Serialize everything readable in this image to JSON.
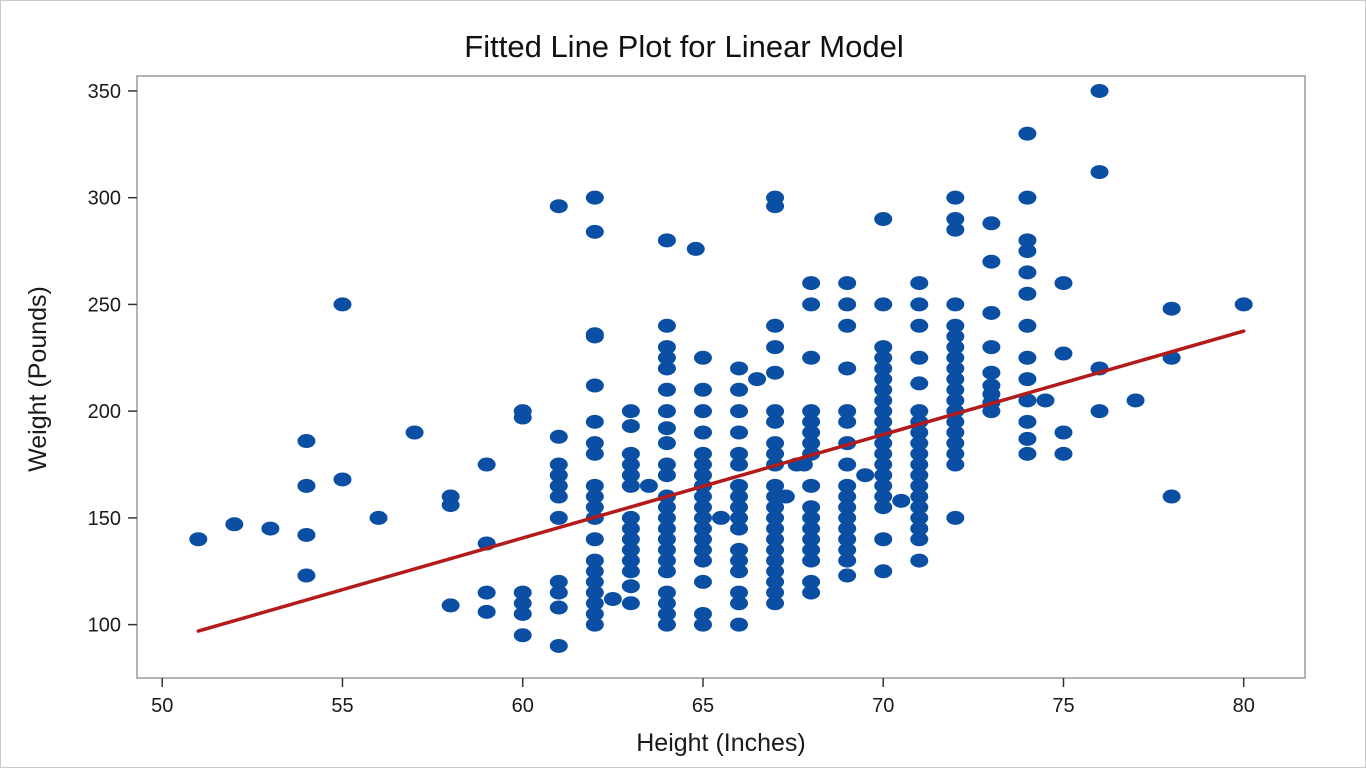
{
  "chart_data": {
    "type": "scatter",
    "title": "Fitted Line Plot for Linear Model",
    "xlabel": "Height (Inches)",
    "ylabel": "Weight (Pounds)",
    "xlim": [
      49.3,
      81.7
    ],
    "ylim": [
      75,
      357
    ],
    "x_ticks": [
      50,
      55,
      60,
      65,
      70,
      75,
      80
    ],
    "y_ticks": [
      100,
      150,
      200,
      250,
      300,
      350
    ],
    "x_tick_labels": [
      "50",
      "55",
      "60",
      "65",
      "70",
      "75",
      "80"
    ],
    "y_tick_labels": [
      "100",
      "150",
      "200",
      "250",
      "300",
      "350"
    ],
    "grid": false,
    "legend": "none",
    "colors": {
      "points": "#0a4fa3",
      "fit_line": "#b31b1b",
      "frame": "#9a9a9a",
      "background": "#ffffff"
    },
    "series": [
      {
        "type": "scatter",
        "points": [
          [
            51,
            140
          ],
          [
            52,
            147
          ],
          [
            53,
            145
          ],
          [
            54,
            186
          ],
          [
            54,
            165
          ],
          [
            54,
            142
          ],
          [
            54,
            123
          ],
          [
            55,
            250
          ],
          [
            55,
            168
          ],
          [
            56,
            150
          ],
          [
            57,
            190
          ],
          [
            58,
            160
          ],
          [
            58,
            156
          ],
          [
            58,
            109
          ],
          [
            59,
            175
          ],
          [
            59,
            138
          ],
          [
            59,
            115
          ],
          [
            59,
            106
          ],
          [
            60,
            200
          ],
          [
            60,
            197
          ],
          [
            60,
            115
          ],
          [
            60,
            110
          ],
          [
            60,
            105
          ],
          [
            60,
            95
          ],
          [
            61,
            296
          ],
          [
            61,
            188
          ],
          [
            61,
            175
          ],
          [
            61,
            170
          ],
          [
            61,
            165
          ],
          [
            61,
            160
          ],
          [
            61,
            150
          ],
          [
            61,
            120
          ],
          [
            61,
            115
          ],
          [
            61,
            108
          ],
          [
            61,
            90
          ],
          [
            62,
            300
          ],
          [
            62,
            284
          ],
          [
            62,
            236
          ],
          [
            62,
            235
          ],
          [
            62,
            212
          ],
          [
            62,
            195
          ],
          [
            62,
            185
          ],
          [
            62,
            180
          ],
          [
            62,
            165
          ],
          [
            62,
            160
          ],
          [
            62,
            155
          ],
          [
            62,
            150
          ],
          [
            62,
            140
          ],
          [
            62,
            130
          ],
          [
            62,
            125
          ],
          [
            62,
            120
          ],
          [
            62,
            115
          ],
          [
            62,
            110
          ],
          [
            62,
            105
          ],
          [
            62,
            100
          ],
          [
            62.5,
            112
          ],
          [
            63,
            200
          ],
          [
            63,
            193
          ],
          [
            63,
            180
          ],
          [
            63,
            175
          ],
          [
            63,
            170
          ],
          [
            63,
            165
          ],
          [
            63,
            150
          ],
          [
            63,
            145
          ],
          [
            63,
            140
          ],
          [
            63,
            135
          ],
          [
            63,
            130
          ],
          [
            63,
            125
          ],
          [
            63,
            118
          ],
          [
            63,
            110
          ],
          [
            63.5,
            165
          ],
          [
            64,
            280
          ],
          [
            64,
            240
          ],
          [
            64,
            230
          ],
          [
            64,
            225
          ],
          [
            64,
            220
          ],
          [
            64,
            210
          ],
          [
            64,
            200
          ],
          [
            64,
            192
          ],
          [
            64,
            185
          ],
          [
            64,
            175
          ],
          [
            64,
            170
          ],
          [
            64,
            160
          ],
          [
            64,
            155
          ],
          [
            64,
            150
          ],
          [
            64,
            145
          ],
          [
            64,
            140
          ],
          [
            64,
            135
          ],
          [
            64,
            130
          ],
          [
            64,
            125
          ],
          [
            64,
            115
          ],
          [
            64,
            110
          ],
          [
            64,
            105
          ],
          [
            64,
            100
          ],
          [
            64.8,
            276
          ],
          [
            65,
            225
          ],
          [
            65,
            210
          ],
          [
            65,
            200
          ],
          [
            65,
            190
          ],
          [
            65,
            180
          ],
          [
            65,
            175
          ],
          [
            65,
            170
          ],
          [
            65,
            165
          ],
          [
            65,
            160
          ],
          [
            65,
            155
          ],
          [
            65,
            150
          ],
          [
            65,
            145
          ],
          [
            65,
            140
          ],
          [
            65,
            135
          ],
          [
            65,
            130
          ],
          [
            65,
            120
          ],
          [
            65,
            105
          ],
          [
            65,
            100
          ],
          [
            65.5,
            150
          ],
          [
            66,
            220
          ],
          [
            66,
            210
          ],
          [
            66,
            200
          ],
          [
            66,
            190
          ],
          [
            66,
            180
          ],
          [
            66,
            175
          ],
          [
            66,
            165
          ],
          [
            66,
            160
          ],
          [
            66,
            155
          ],
          [
            66,
            150
          ],
          [
            66,
            145
          ],
          [
            66,
            135
          ],
          [
            66,
            130
          ],
          [
            66,
            125
          ],
          [
            66,
            115
          ],
          [
            66,
            110
          ],
          [
            66,
            100
          ],
          [
            66.5,
            215
          ],
          [
            67,
            300
          ],
          [
            67,
            296
          ],
          [
            67,
            240
          ],
          [
            67,
            230
          ],
          [
            67,
            218
          ],
          [
            67,
            200
          ],
          [
            67,
            195
          ],
          [
            67,
            185
          ],
          [
            67,
            180
          ],
          [
            67,
            175
          ],
          [
            67,
            165
          ],
          [
            67,
            160
          ],
          [
            67,
            155
          ],
          [
            67,
            150
          ],
          [
            67,
            145
          ],
          [
            67,
            140
          ],
          [
            67,
            135
          ],
          [
            67,
            130
          ],
          [
            67,
            125
          ],
          [
            67,
            120
          ],
          [
            67,
            115
          ],
          [
            67,
            110
          ],
          [
            67.3,
            160
          ],
          [
            67.6,
            175
          ],
          [
            67.8,
            175
          ],
          [
            68,
            260
          ],
          [
            68,
            250
          ],
          [
            68,
            225
          ],
          [
            68,
            200
          ],
          [
            68,
            195
          ],
          [
            68,
            190
          ],
          [
            68,
            185
          ],
          [
            68,
            180
          ],
          [
            68,
            165
          ],
          [
            68,
            155
          ],
          [
            68,
            150
          ],
          [
            68,
            145
          ],
          [
            68,
            140
          ],
          [
            68,
            135
          ],
          [
            68,
            130
          ],
          [
            68,
            120
          ],
          [
            68,
            115
          ],
          [
            69,
            260
          ],
          [
            69,
            250
          ],
          [
            69,
            240
          ],
          [
            69,
            220
          ],
          [
            69,
            200
          ],
          [
            69,
            195
          ],
          [
            69,
            185
          ],
          [
            69,
            175
          ],
          [
            69,
            165
          ],
          [
            69,
            160
          ],
          [
            69,
            155
          ],
          [
            69,
            150
          ],
          [
            69,
            145
          ],
          [
            69,
            140
          ],
          [
            69,
            135
          ],
          [
            69,
            130
          ],
          [
            69,
            123
          ],
          [
            69.5,
            170
          ],
          [
            70,
            290
          ],
          [
            70,
            250
          ],
          [
            70,
            230
          ],
          [
            70,
            225
          ],
          [
            70,
            220
          ],
          [
            70,
            215
          ],
          [
            70,
            210
          ],
          [
            70,
            205
          ],
          [
            70,
            200
          ],
          [
            70,
            195
          ],
          [
            70,
            190
          ],
          [
            70,
            185
          ],
          [
            70,
            180
          ],
          [
            70,
            175
          ],
          [
            70,
            170
          ],
          [
            70,
            165
          ],
          [
            70,
            160
          ],
          [
            70,
            155
          ],
          [
            70,
            140
          ],
          [
            70,
            125
          ],
          [
            70.5,
            158
          ],
          [
            71,
            260
          ],
          [
            71,
            250
          ],
          [
            71,
            240
          ],
          [
            71,
            225
          ],
          [
            71,
            213
          ],
          [
            71,
            200
          ],
          [
            71,
            195
          ],
          [
            71,
            190
          ],
          [
            71,
            185
          ],
          [
            71,
            180
          ],
          [
            71,
            175
          ],
          [
            71,
            170
          ],
          [
            71,
            165
          ],
          [
            71,
            160
          ],
          [
            71,
            155
          ],
          [
            71,
            150
          ],
          [
            71,
            145
          ],
          [
            71,
            140
          ],
          [
            71,
            130
          ],
          [
            72,
            300
          ],
          [
            72,
            290
          ],
          [
            72,
            285
          ],
          [
            72,
            250
          ],
          [
            72,
            240
          ],
          [
            72,
            235
          ],
          [
            72,
            230
          ],
          [
            72,
            225
          ],
          [
            72,
            220
          ],
          [
            72,
            215
          ],
          [
            72,
            210
          ],
          [
            72,
            205
          ],
          [
            72,
            200
          ],
          [
            72,
            195
          ],
          [
            72,
            190
          ],
          [
            72,
            185
          ],
          [
            72,
            180
          ],
          [
            72,
            175
          ],
          [
            72,
            150
          ],
          [
            73,
            288
          ],
          [
            73,
            270
          ],
          [
            73,
            246
          ],
          [
            73,
            230
          ],
          [
            73,
            218
          ],
          [
            73,
            212
          ],
          [
            73,
            208
          ],
          [
            73,
            204
          ],
          [
            73,
            200
          ],
          [
            74,
            330
          ],
          [
            74,
            300
          ],
          [
            74,
            280
          ],
          [
            74,
            275
          ],
          [
            74,
            265
          ],
          [
            74,
            255
          ],
          [
            74,
            240
          ],
          [
            74,
            225
          ],
          [
            74,
            215
          ],
          [
            74,
            205
          ],
          [
            74,
            195
          ],
          [
            74,
            187
          ],
          [
            74,
            180
          ],
          [
            74.5,
            205
          ],
          [
            75,
            260
          ],
          [
            75,
            227
          ],
          [
            75,
            190
          ],
          [
            75,
            180
          ],
          [
            76,
            350
          ],
          [
            76,
            312
          ],
          [
            76,
            220
          ],
          [
            76,
            200
          ],
          [
            77,
            205
          ],
          [
            78,
            248
          ],
          [
            78,
            225
          ],
          [
            78,
            160
          ],
          [
            80,
            250
          ]
        ]
      },
      {
        "type": "line",
        "points": [
          [
            51,
            97
          ],
          [
            80,
            237.5
          ]
        ]
      }
    ]
  }
}
